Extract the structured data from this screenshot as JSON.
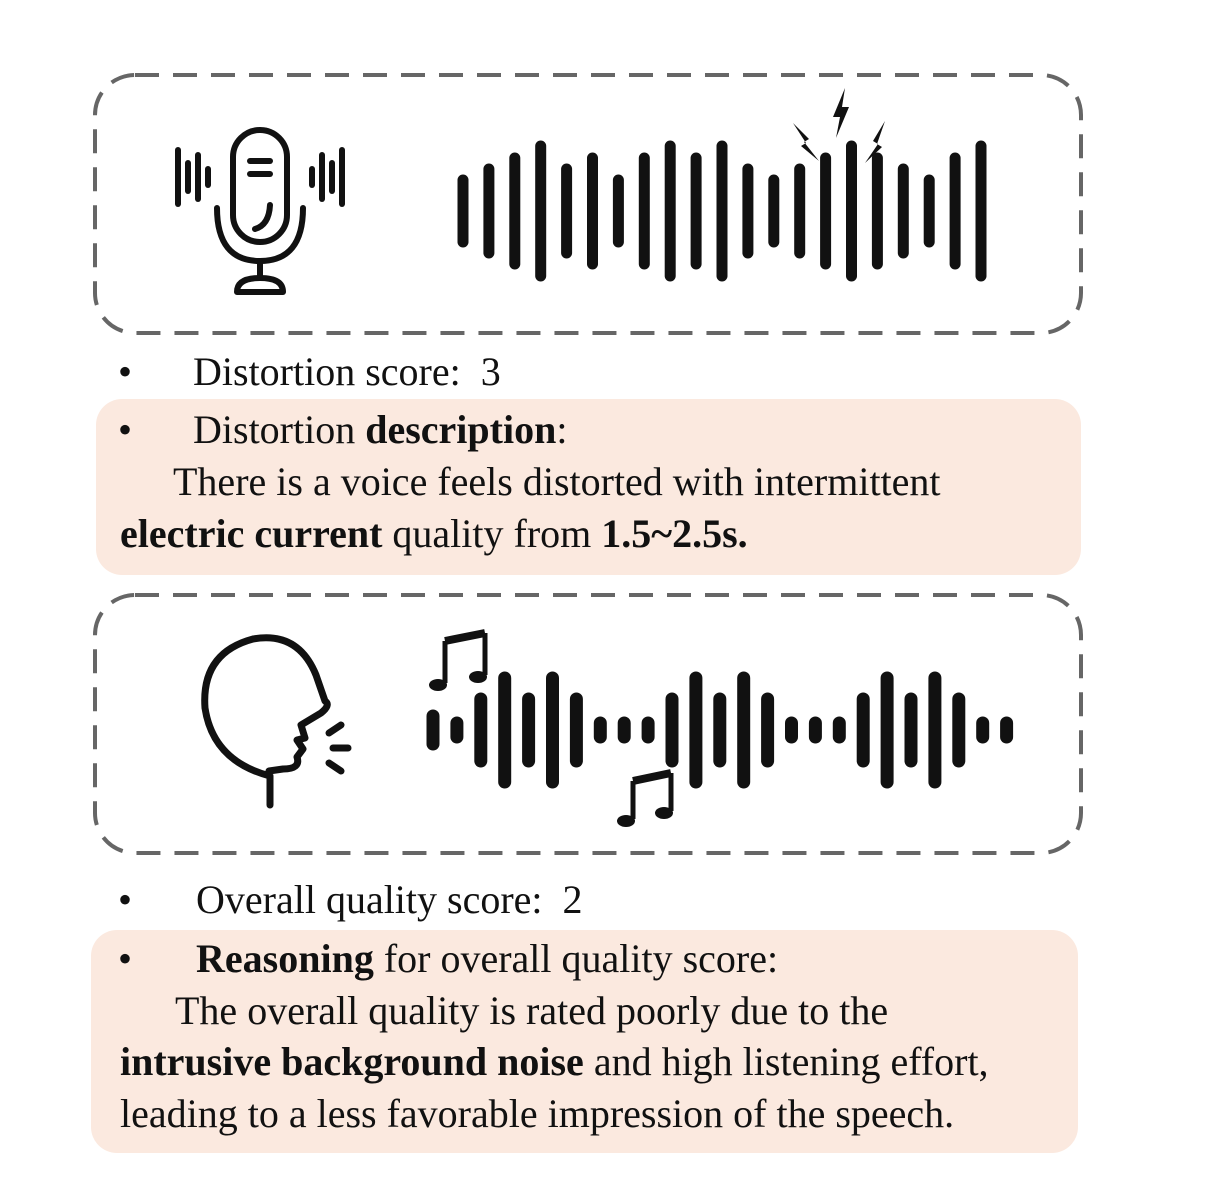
{
  "section1": {
    "score_label": "Distortion score:",
    "score_value": "3",
    "desc_label": "Distortion ",
    "desc_label_bold": "description",
    "desc_colon": ":",
    "desc_line1": "There is a voice feels distorted with intermittent",
    "desc_line2_bold": "electric current",
    "desc_line2_mid": " quality from ",
    "desc_line2_end_bold": "1.5~2.5s."
  },
  "section2": {
    "score_label": "Overall quality score:",
    "score_value": "2",
    "reason_bold": "Reasoning",
    "reason_label": " for overall quality score:",
    "line1": "The overall quality is rated poorly due to the",
    "line2_bold": "intrusive background noise",
    "line2_rest": " and high listening effort,",
    "line3": "leading to a less favorable impression of the speech."
  },
  "bullet_char": "•",
  "colors": {
    "highlight": "#fbe9df",
    "dash": "#666666",
    "icon": "#111111"
  },
  "icons": [
    "microphone-icon",
    "waveform-icon",
    "lightning-icon",
    "head-speaking-icon",
    "music-note-icon"
  ]
}
